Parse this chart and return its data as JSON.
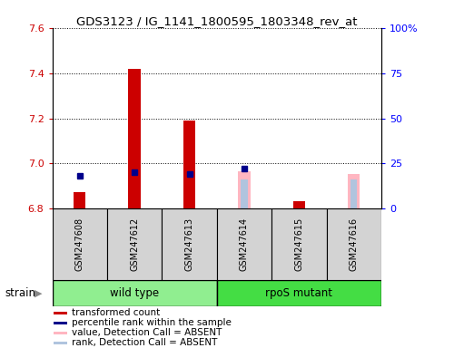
{
  "title": "GDS3123 / IG_1141_1800595_1803348_rev_at",
  "samples": [
    "GSM247608",
    "GSM247612",
    "GSM247613",
    "GSM247614",
    "GSM247615",
    "GSM247616"
  ],
  "ylim_left": [
    6.8,
    7.6
  ],
  "ylim_right": [
    0,
    100
  ],
  "yticks_left": [
    6.8,
    7.0,
    7.2,
    7.4,
    7.6
  ],
  "yticks_right": [
    0,
    25,
    50,
    75,
    100
  ],
  "ytick_labels_right": [
    "0",
    "25",
    "50",
    "75",
    "100%"
  ],
  "red_bars": {
    "GSM247608": 6.875,
    "GSM247612": 7.42,
    "GSM247613": 7.19,
    "GSM247614": null,
    "GSM247615": 6.835,
    "GSM247616": null
  },
  "blue_dots": {
    "GSM247608": 18,
    "GSM247612": 20,
    "GSM247613": 19,
    "GSM247614": 22,
    "GSM247615": null,
    "GSM247616": null
  },
  "pink_bars": {
    "GSM247608": null,
    "GSM247612": null,
    "GSM247613": null,
    "GSM247614": 6.965,
    "GSM247615": null,
    "GSM247616": 6.955
  },
  "lightblue_bars": {
    "GSM247608": null,
    "GSM247612": null,
    "GSM247613": null,
    "GSM247614": 6.93,
    "GSM247615": null,
    "GSM247616": 6.93
  },
  "bar_bottom": 6.8,
  "red_bar_width": 0.22,
  "pink_bar_width": 0.22,
  "lightblue_bar_width": 0.12,
  "blue_marker_size": 4,
  "legend_items": [
    {
      "color": "#CC0000",
      "label": "transformed count"
    },
    {
      "color": "#00008B",
      "label": "percentile rank within the sample"
    },
    {
      "color": "#FFB6C1",
      "label": "value, Detection Call = ABSENT"
    },
    {
      "color": "#B0C4DE",
      "label": "rank, Detection Call = ABSENT"
    }
  ],
  "wt_color": "#90EE90",
  "rpos_color": "#44DD44",
  "gray_box_color": "#D3D3D3",
  "strain_label": "strain"
}
